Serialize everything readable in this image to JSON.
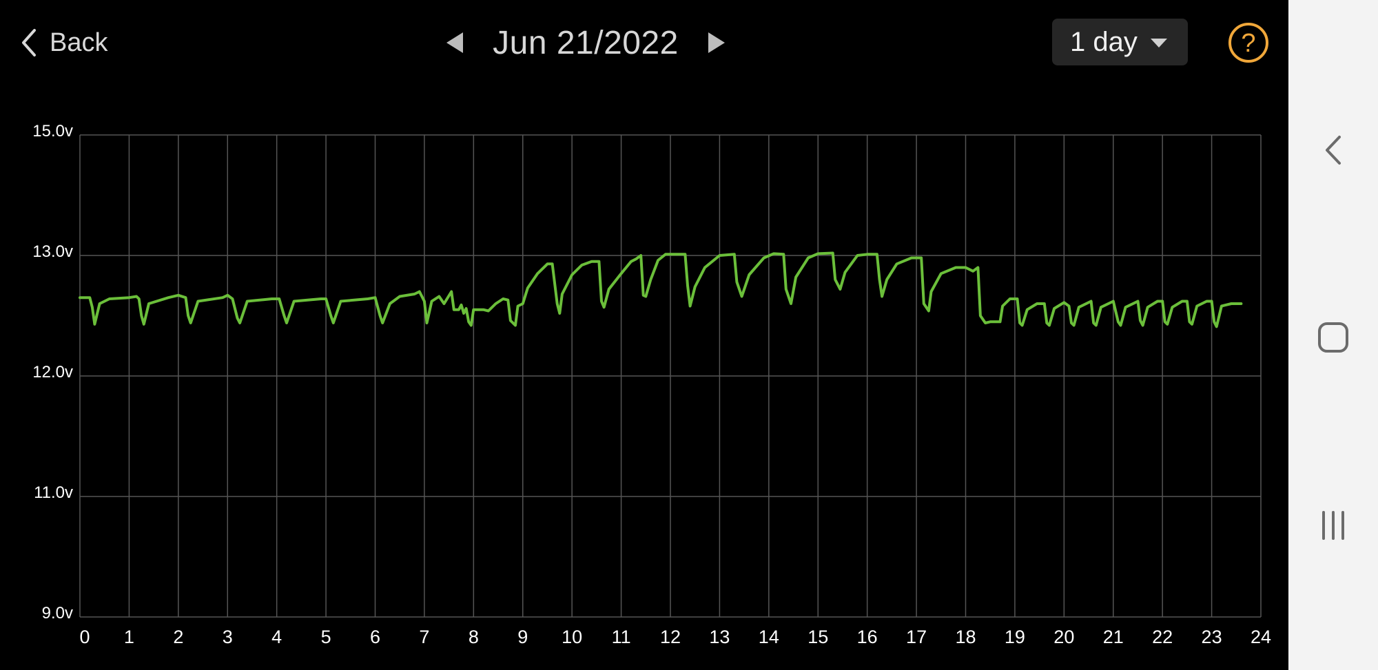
{
  "header": {
    "back_label": "Back",
    "date_title": "Jun 21/2022",
    "range_selected": "1 day"
  },
  "icons": {
    "back": "chevron-left-icon",
    "prev": "triangle-left-icon",
    "next": "triangle-right-icon",
    "dropdown": "caret-down-icon",
    "help": "question-circle-icon",
    "sys_back": "chevron-left-icon",
    "sys_home": "rounded-square-icon",
    "sys_recents": "three-bars-icon"
  },
  "colors": {
    "background": "#000000",
    "series": "#6bbf3a",
    "help_accent": "#f0a73a",
    "grid": "#555555"
  },
  "chart_data": {
    "type": "line",
    "xlim": [
      0,
      24
    ],
    "x_ticks": [
      0,
      1,
      2,
      3,
      4,
      5,
      6,
      7,
      8,
      9,
      10,
      11,
      12,
      13,
      14,
      15,
      16,
      17,
      18,
      19,
      20,
      21,
      22,
      23,
      24
    ],
    "x_tick_labels": [
      "0",
      "1",
      "2",
      "3",
      "4",
      "5",
      "6",
      "7",
      "8",
      "9",
      "10",
      "11",
      "12",
      "13",
      "14",
      "15",
      "16",
      "17",
      "18",
      "19",
      "20",
      "21",
      "22",
      "23",
      "24"
    ],
    "y_ticks": [
      9,
      11,
      12,
      13,
      15
    ],
    "y_tick_labels": [
      "9.0v",
      "11.0v",
      "12.0v",
      "13.0v",
      "15.0v"
    ],
    "grid": true,
    "series": [
      {
        "points": [
          [
            0.0,
            12.65
          ],
          [
            0.2,
            12.65
          ],
          [
            0.25,
            12.57
          ],
          [
            0.3,
            12.43
          ],
          [
            0.4,
            12.6
          ],
          [
            0.6,
            12.64
          ],
          [
            1.0,
            12.65
          ],
          [
            1.15,
            12.66
          ],
          [
            1.2,
            12.64
          ],
          [
            1.25,
            12.5
          ],
          [
            1.3,
            12.43
          ],
          [
            1.4,
            12.6
          ],
          [
            1.8,
            12.65
          ],
          [
            2.0,
            12.67
          ],
          [
            2.15,
            12.65
          ],
          [
            2.2,
            12.5
          ],
          [
            2.25,
            12.44
          ],
          [
            2.4,
            12.62
          ],
          [
            2.9,
            12.65
          ],
          [
            3.0,
            12.67
          ],
          [
            3.1,
            12.64
          ],
          [
            3.2,
            12.48
          ],
          [
            3.25,
            12.44
          ],
          [
            3.4,
            12.62
          ],
          [
            3.9,
            12.64
          ],
          [
            4.05,
            12.64
          ],
          [
            4.15,
            12.5
          ],
          [
            4.2,
            12.44
          ],
          [
            4.35,
            12.62
          ],
          [
            4.9,
            12.64
          ],
          [
            5.0,
            12.64
          ],
          [
            5.1,
            12.5
          ],
          [
            5.15,
            12.44
          ],
          [
            5.3,
            12.62
          ],
          [
            5.85,
            12.64
          ],
          [
            6.0,
            12.65
          ],
          [
            6.1,
            12.5
          ],
          [
            6.15,
            12.44
          ],
          [
            6.3,
            12.6
          ],
          [
            6.5,
            12.66
          ],
          [
            6.8,
            12.68
          ],
          [
            6.9,
            12.7
          ],
          [
            7.0,
            12.62
          ],
          [
            7.05,
            12.44
          ],
          [
            7.15,
            12.62
          ],
          [
            7.3,
            12.66
          ],
          [
            7.4,
            12.6
          ],
          [
            7.55,
            12.7
          ],
          [
            7.6,
            12.55
          ],
          [
            7.7,
            12.55
          ],
          [
            7.75,
            12.59
          ],
          [
            7.8,
            12.52
          ],
          [
            7.85,
            12.56
          ],
          [
            7.9,
            12.45
          ],
          [
            7.95,
            12.42
          ],
          [
            8.0,
            12.55
          ],
          [
            8.2,
            12.55
          ],
          [
            8.3,
            12.54
          ],
          [
            8.45,
            12.6
          ],
          [
            8.6,
            12.64
          ],
          [
            8.7,
            12.63
          ],
          [
            8.75,
            12.46
          ],
          [
            8.85,
            12.42
          ],
          [
            8.9,
            12.58
          ],
          [
            9.0,
            12.6
          ],
          [
            9.1,
            12.73
          ],
          [
            9.3,
            12.85
          ],
          [
            9.5,
            12.93
          ],
          [
            9.6,
            12.93
          ],
          [
            9.7,
            12.6
          ],
          [
            9.75,
            12.52
          ],
          [
            9.8,
            12.68
          ],
          [
            10.0,
            12.84
          ],
          [
            10.2,
            12.92
          ],
          [
            10.4,
            12.95
          ],
          [
            10.55,
            12.95
          ],
          [
            10.6,
            12.62
          ],
          [
            10.65,
            12.57
          ],
          [
            10.75,
            12.72
          ],
          [
            11.0,
            12.85
          ],
          [
            11.2,
            12.95
          ],
          [
            11.3,
            12.97
          ],
          [
            11.4,
            13.0
          ],
          [
            11.45,
            12.67
          ],
          [
            11.5,
            12.66
          ],
          [
            11.6,
            12.8
          ],
          [
            11.75,
            12.96
          ],
          [
            11.9,
            13.02
          ],
          [
            12.0,
            13.02
          ],
          [
            12.3,
            13.02
          ],
          [
            12.35,
            12.75
          ],
          [
            12.4,
            12.58
          ],
          [
            12.5,
            12.74
          ],
          [
            12.7,
            12.9
          ],
          [
            13.0,
            13.0
          ],
          [
            13.3,
            13.02
          ],
          [
            13.35,
            12.78
          ],
          [
            13.45,
            12.66
          ],
          [
            13.6,
            12.84
          ],
          [
            13.9,
            12.98
          ],
          [
            14.1,
            13.03
          ],
          [
            14.3,
            13.02
          ],
          [
            14.35,
            12.72
          ],
          [
            14.45,
            12.6
          ],
          [
            14.55,
            12.82
          ],
          [
            14.8,
            12.98
          ],
          [
            15.0,
            13.03
          ],
          [
            15.3,
            13.04
          ],
          [
            15.35,
            12.8
          ],
          [
            15.45,
            12.72
          ],
          [
            15.55,
            12.86
          ],
          [
            15.8,
            13.0
          ],
          [
            16.0,
            13.02
          ],
          [
            16.2,
            13.02
          ],
          [
            16.25,
            12.8
          ],
          [
            16.3,
            12.66
          ],
          [
            16.4,
            12.8
          ],
          [
            16.6,
            12.93
          ],
          [
            16.9,
            12.98
          ],
          [
            17.1,
            12.98
          ],
          [
            17.15,
            12.6
          ],
          [
            17.25,
            12.54
          ],
          [
            17.3,
            12.7
          ],
          [
            17.5,
            12.85
          ],
          [
            17.8,
            12.9
          ],
          [
            18.0,
            12.9
          ],
          [
            18.15,
            12.87
          ],
          [
            18.25,
            12.9
          ],
          [
            18.3,
            12.5
          ],
          [
            18.4,
            12.44
          ],
          [
            18.5,
            12.45
          ],
          [
            18.7,
            12.45
          ],
          [
            18.75,
            12.58
          ],
          [
            18.9,
            12.64
          ],
          [
            19.05,
            12.64
          ],
          [
            19.1,
            12.44
          ],
          [
            19.15,
            12.42
          ],
          [
            19.25,
            12.55
          ],
          [
            19.45,
            12.6
          ],
          [
            19.6,
            12.6
          ],
          [
            19.65,
            12.44
          ],
          [
            19.7,
            12.42
          ],
          [
            19.8,
            12.56
          ],
          [
            20.0,
            12.61
          ],
          [
            20.1,
            12.58
          ],
          [
            20.15,
            12.44
          ],
          [
            20.2,
            12.42
          ],
          [
            20.3,
            12.57
          ],
          [
            20.55,
            12.62
          ],
          [
            20.6,
            12.44
          ],
          [
            20.65,
            12.42
          ],
          [
            20.75,
            12.57
          ],
          [
            21.0,
            12.62
          ],
          [
            21.1,
            12.45
          ],
          [
            21.15,
            12.42
          ],
          [
            21.25,
            12.57
          ],
          [
            21.5,
            12.62
          ],
          [
            21.55,
            12.46
          ],
          [
            21.6,
            12.42
          ],
          [
            21.7,
            12.57
          ],
          [
            21.9,
            12.62
          ],
          [
            22.0,
            12.62
          ],
          [
            22.05,
            12.45
          ],
          [
            22.1,
            12.43
          ],
          [
            22.2,
            12.57
          ],
          [
            22.4,
            12.62
          ],
          [
            22.5,
            12.62
          ],
          [
            22.55,
            12.45
          ],
          [
            22.6,
            12.43
          ],
          [
            22.7,
            12.58
          ],
          [
            22.9,
            12.62
          ],
          [
            23.0,
            12.62
          ],
          [
            23.05,
            12.45
          ],
          [
            23.1,
            12.41
          ],
          [
            23.2,
            12.58
          ],
          [
            23.4,
            12.6
          ],
          [
            23.6,
            12.6
          ]
        ]
      }
    ]
  }
}
